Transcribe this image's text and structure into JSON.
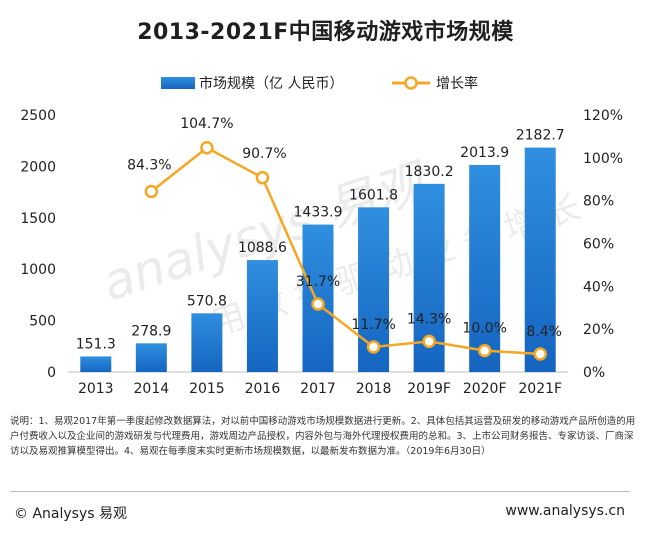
{
  "chart_data": {
    "type": "bar+line",
    "title": "2013-2021F中国移动游戏市场规模",
    "categories": [
      "2013",
      "2014",
      "2015",
      "2016",
      "2017",
      "2018",
      "2019F",
      "2020F",
      "2021F"
    ],
    "series": [
      {
        "name": "市场规模（亿 人民币）",
        "type": "bar",
        "axis": "left",
        "values": [
          151.3,
          278.9,
          570.8,
          1088.6,
          1433.9,
          1601.8,
          1830.2,
          2013.9,
          2182.7
        ],
        "labels": [
          "151.3",
          "278.9",
          "570.8",
          "1088.6",
          "1433.9",
          "1601.8",
          "1830.2",
          "2013.9",
          "2182.7"
        ]
      },
      {
        "name": "增长率",
        "type": "line",
        "axis": "right",
        "values": [
          null,
          84.3,
          104.7,
          90.7,
          31.7,
          11.7,
          14.3,
          10.0,
          8.4
        ],
        "labels": [
          "",
          "84.3%",
          "104.7%",
          "90.7%",
          "31.7%",
          "11.7%",
          "14.3%",
          "10.0%",
          "8.4%"
        ]
      }
    ],
    "y_left": {
      "ylim": [
        0,
        2500
      ],
      "ticks": [
        0,
        500,
        1000,
        1500,
        2000,
        2500
      ],
      "tick_labels": [
        "0",
        "500",
        "1000",
        "1500",
        "2000",
        "2500"
      ]
    },
    "y_right": {
      "ylim": [
        0,
        120
      ],
      "ticks": [
        0,
        20,
        40,
        60,
        80,
        100,
        120
      ],
      "tick_labels": [
        "0%",
        "20%",
        "40%",
        "60%",
        "80%",
        "100%",
        "120%"
      ]
    },
    "grid": false,
    "legend": "top-center",
    "colors": {
      "bar_top": "#2f8fe0",
      "bar_bottom": "#1565c0",
      "line": "#f5a623",
      "marker_fill": "#ffffff"
    }
  },
  "notes": "说明：1、易观2017年第一季度起修改数据算法，对以前中国移动游戏市场规模数据进行更新。2、具体包括其运营及研发的移动游戏产品所创造的用户付费收入以及企业间的游戏研发与代理费用，游戏周边产品授权，内容外包与海外代理授权费用的总和。3、上市公司财务报告、专家访谈、厂商深访以及易观推算模型得出。4、易观在每季度末实时更新市场规模数据，以最新发布数据为准。（2019年6月30日）",
  "footer": {
    "copyright": "© Analysys 易观",
    "website": "www.analysys.cn"
  },
  "watermark": {
    "text_main": "analysys 易观",
    "text_sub": "用数据驱动业务增长",
    "color": "#e6e6e6"
  }
}
